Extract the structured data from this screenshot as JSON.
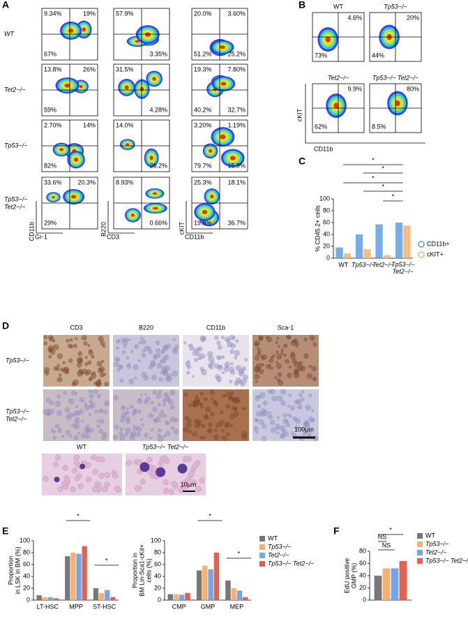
{
  "panel_labels": [
    "A",
    "B",
    "C",
    "D",
    "E",
    "F"
  ],
  "flow_a": {
    "row_labels": [
      [
        "WT"
      ],
      [
        "Tet2−/−"
      ],
      [
        "Tp53−/−"
      ],
      [
        "Tp53−/−",
        "Tet2−/−"
      ]
    ],
    "axes": [
      {
        "y": "CD11b",
        "x": "Gr-1"
      },
      {
        "y": "B220",
        "x": "CD3"
      },
      {
        "y": "cKIT",
        "x": "CD11b"
      }
    ],
    "plots": [
      [
        {
          "ul": "9.34%",
          "ur": "19%",
          "ll": "67%"
        },
        {
          "ul": "57.9%",
          "lr": "3.35%"
        },
        {
          "ul": "20.0%",
          "ur": "3.60%",
          "ll": "51.2%",
          "lr": "25.2%"
        }
      ],
      [
        {
          "ul": "13.8%",
          "ur": "26%",
          "ll": "59%"
        },
        {
          "ul": "31.5%",
          "lr": "4.28%"
        },
        {
          "ul": "19.3%",
          "ur": "7.80%",
          "ll": "40.2%",
          "lr": "32.7%"
        }
      ],
      [
        {
          "ul": "2.70%",
          "ur": "14%",
          "ll": "82%"
        },
        {
          "ul": "14.0%",
          "lr": "26.2%"
        },
        {
          "ul": "3.20%",
          "ur": "1.19%",
          "ll": "79.7%",
          "lr": "15.9%"
        }
      ],
      [
        {
          "ul": "33.6%",
          "ur": "20.3%",
          "ll": "29%"
        },
        {
          "ul": "8.93%",
          "lr": "0.66%"
        },
        {
          "ul": "25.3%",
          "ur": "18.1%",
          "ll": "19.8%",
          "lr": "36.7%"
        }
      ]
    ]
  },
  "flow_b": {
    "titles": [
      "WT",
      "Tp53−/−",
      "Tet2−/−",
      "Tp53−/− Tet2−/−"
    ],
    "plots": [
      {
        "ur": "4.6%",
        "ll": "73%"
      },
      {
        "ur": "20%",
        "ll": "44%"
      },
      {
        "ur": "9.9%",
        "ll": "62%"
      },
      {
        "ur": "80%",
        "ll": "8.5%"
      }
    ],
    "y_label": "cKIT",
    "x_label": "CD11b"
  },
  "histology": {
    "columns": [
      "CD3",
      "B220",
      "CD11b",
      "Sca-1"
    ],
    "rows": [
      [
        "Tp53−/−"
      ],
      [
        "Tp53−/−",
        "Tet2−/−"
      ]
    ],
    "scale": "100μm",
    "smear_labels": [
      "WT",
      "Tp53−/− Tet2−/−"
    ],
    "smear_scale": "10μm"
  },
  "chart_data": [
    {
      "type": "bar",
      "y_label": [
        "% CD45.2+ cells"
      ],
      "categories": [
        "WT",
        "Tp53−/−",
        "Tet2−/−",
        "Tp53−/− Tet2−/−"
      ],
      "series": [
        {
          "name": "CD11b+",
          "color": "#5aa0e8",
          "values": [
            18,
            40,
            57,
            60
          ]
        },
        {
          "name": "cKIT+",
          "color": "#f6b26b",
          "values": [
            8,
            15,
            5,
            55
          ]
        }
      ],
      "ylim": [
        0,
        100
      ],
      "yticks": [
        0,
        20,
        40,
        60,
        80,
        100
      ],
      "legend": "right",
      "annotations": [
        "*",
        "*",
        "*",
        "*",
        "*"
      ]
    },
    {
      "type": "bar",
      "y_label": [
        "Proportion",
        "in LSK in BM (%)"
      ],
      "categories": [
        "LT-HSC",
        "MPP",
        "ST-HSC"
      ],
      "series": [
        {
          "name": "WT",
          "color": "#777777",
          "values": [
            8,
            74,
            20
          ]
        },
        {
          "name": "Tp53−/−",
          "color": "#f6b26b",
          "values": [
            5,
            80,
            12
          ]
        },
        {
          "name": "Tet2−/−",
          "color": "#6ea6f0",
          "values": [
            5,
            78,
            17
          ]
        },
        {
          "name": "Tp53−/− Tet2−/−",
          "color": "#e8604c",
          "values": [
            3,
            91,
            5
          ]
        }
      ],
      "ylim": [
        0,
        100
      ],
      "yticks": [
        0,
        20,
        40,
        60,
        80,
        100
      ],
      "annotations": [
        "*",
        "*"
      ]
    },
    {
      "type": "bar",
      "y_label": [
        "Proportion in",
        "BM Lin-Sca1-cKit+",
        "cells (%)"
      ],
      "categories": [
        "CMP",
        "GMP",
        "MEP"
      ],
      "series": [
        {
          "name": "WT",
          "color": "#777777",
          "values": [
            10,
            50,
            33
          ]
        },
        {
          "name": "Tp53−/−",
          "color": "#f6b26b",
          "values": [
            10,
            58,
            20
          ]
        },
        {
          "name": "Tet2−/−",
          "color": "#6ea6f0",
          "values": [
            9,
            52,
            16
          ]
        },
        {
          "name": "Tp53−/− Tet2−/−",
          "color": "#e8604c",
          "values": [
            12,
            80,
            5
          ]
        }
      ],
      "ylim": [
        0,
        100
      ],
      "yticks": [
        0,
        20,
        40,
        60,
        80,
        100
      ],
      "legend": "right",
      "annotations": [
        "*",
        "*"
      ]
    },
    {
      "type": "bar",
      "y_label": [
        "EdU positive",
        "GMP (%)"
      ],
      "categories": [
        null
      ],
      "series": [
        {
          "name": "WT",
          "color": "#777777",
          "values": [
            40
          ]
        },
        {
          "name": "Tp53−/−",
          "color": "#f6b26b",
          "values": [
            52
          ]
        },
        {
          "name": "Tet2−/−",
          "color": "#6ea6f0",
          "values": [
            52
          ]
        },
        {
          "name": "Tp53−/− Tet2−/−",
          "color": "#e8604c",
          "values": [
            64
          ]
        }
      ],
      "ylim": [
        0,
        80
      ],
      "yticks": [
        0,
        20,
        40,
        60,
        80
      ],
      "legend": "right",
      "annotations": [
        "NS",
        "NS",
        "*"
      ]
    }
  ]
}
